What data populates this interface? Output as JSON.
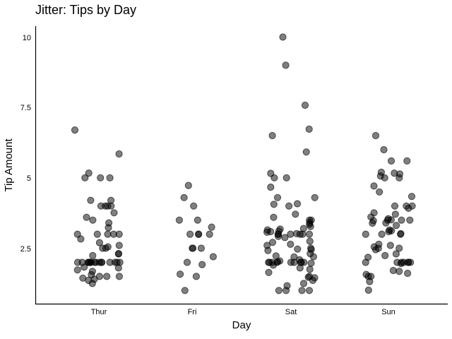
{
  "chart_data": {
    "type": "scatter",
    "title": "Jitter: Tips by Day",
    "xlabel": "Day",
    "ylabel": "Tip Amount",
    "categories": [
      "Thur",
      "Fri",
      "Sat",
      "Sun"
    ],
    "yticks": [
      2.5,
      5,
      7.5,
      10
    ],
    "ytick_labels": [
      "2.5",
      "5",
      "7.5",
      "10"
    ],
    "ylim": [
      0.5,
      10.35
    ],
    "jitter": true,
    "grid": false,
    "colors": {
      "point": "#000000"
    },
    "series": [
      {
        "category": "Thur",
        "values": [
          6.7,
          5.85,
          5.17,
          5.0,
          5.0,
          5.0,
          4.2,
          4.2,
          4.0,
          4.0,
          4.0,
          4.0,
          3.76,
          3.6,
          3.5,
          3.4,
          3.23,
          3.0,
          3.0,
          3.0,
          3.0,
          3.0,
          2.83,
          2.7,
          2.6,
          2.55,
          2.5,
          2.5,
          2.31,
          2.3,
          2.24,
          2.0,
          2.0,
          2.0,
          2.0,
          2.0,
          2.0,
          2.0,
          2.0,
          2.0,
          2.0,
          2.0,
          2.0,
          2.0,
          2.0,
          2.0,
          2.0,
          1.83,
          1.8,
          1.73,
          1.68,
          1.56,
          1.5,
          1.5,
          1.5,
          1.44,
          1.4,
          1.36,
          1.25
        ]
      },
      {
        "category": "Fri",
        "values": [
          4.73,
          4.3,
          4.0,
          3.5,
          3.5,
          3.25,
          3.0,
          3.0,
          3.0,
          3.0,
          2.5,
          2.5,
          2.5,
          2.2,
          2.0,
          1.92,
          1.58,
          1.5,
          1.0
        ]
      },
      {
        "category": "Sat",
        "values": [
          10.0,
          9.0,
          7.58,
          6.73,
          6.5,
          5.92,
          5.16,
          5.0,
          5.0,
          4.67,
          4.3,
          4.3,
          4.08,
          4.06,
          4.0,
          3.71,
          3.6,
          3.5,
          3.5,
          3.41,
          3.35,
          3.27,
          3.2,
          3.18,
          3.15,
          3.11,
          3.09,
          3.07,
          3.02,
          3.0,
          3.0,
          3.0,
          3.0,
          3.0,
          3.0,
          2.92,
          2.88,
          2.75,
          2.71,
          2.64,
          2.6,
          2.5,
          2.47,
          2.45,
          2.42,
          2.31,
          2.23,
          2.2,
          2.19,
          2.09,
          2.05,
          2.02,
          2.0,
          2.0,
          2.0,
          2.0,
          2.0,
          2.0,
          2.0,
          2.0,
          2.0,
          1.97,
          1.9,
          1.8,
          1.75,
          1.64,
          1.5,
          1.47,
          1.45,
          1.36,
          1.25,
          1.17,
          1.0,
          1.0,
          1.0,
          1.0
        ]
      },
      {
        "category": "Sun",
        "values": [
          6.5,
          6.0,
          5.6,
          5.6,
          5.2,
          5.17,
          5.14,
          5.07,
          5.0,
          5.0,
          4.71,
          4.5,
          4.34,
          4.0,
          4.0,
          4.0,
          3.92,
          3.76,
          3.71,
          3.61,
          3.55,
          3.51,
          3.5,
          3.5,
          3.5,
          3.48,
          3.4,
          3.39,
          3.31,
          3.15,
          3.12,
          3.09,
          3.02,
          3.0,
          3.0,
          3.0,
          2.64,
          2.6,
          2.55,
          2.5,
          2.5,
          2.45,
          2.3,
          2.24,
          2.18,
          2.0,
          2.0,
          2.0,
          2.0,
          2.0,
          2.0,
          2.0,
          1.96,
          1.71,
          1.68,
          1.61,
          1.57,
          1.5,
          1.5,
          1.32,
          1.01
        ]
      }
    ]
  }
}
